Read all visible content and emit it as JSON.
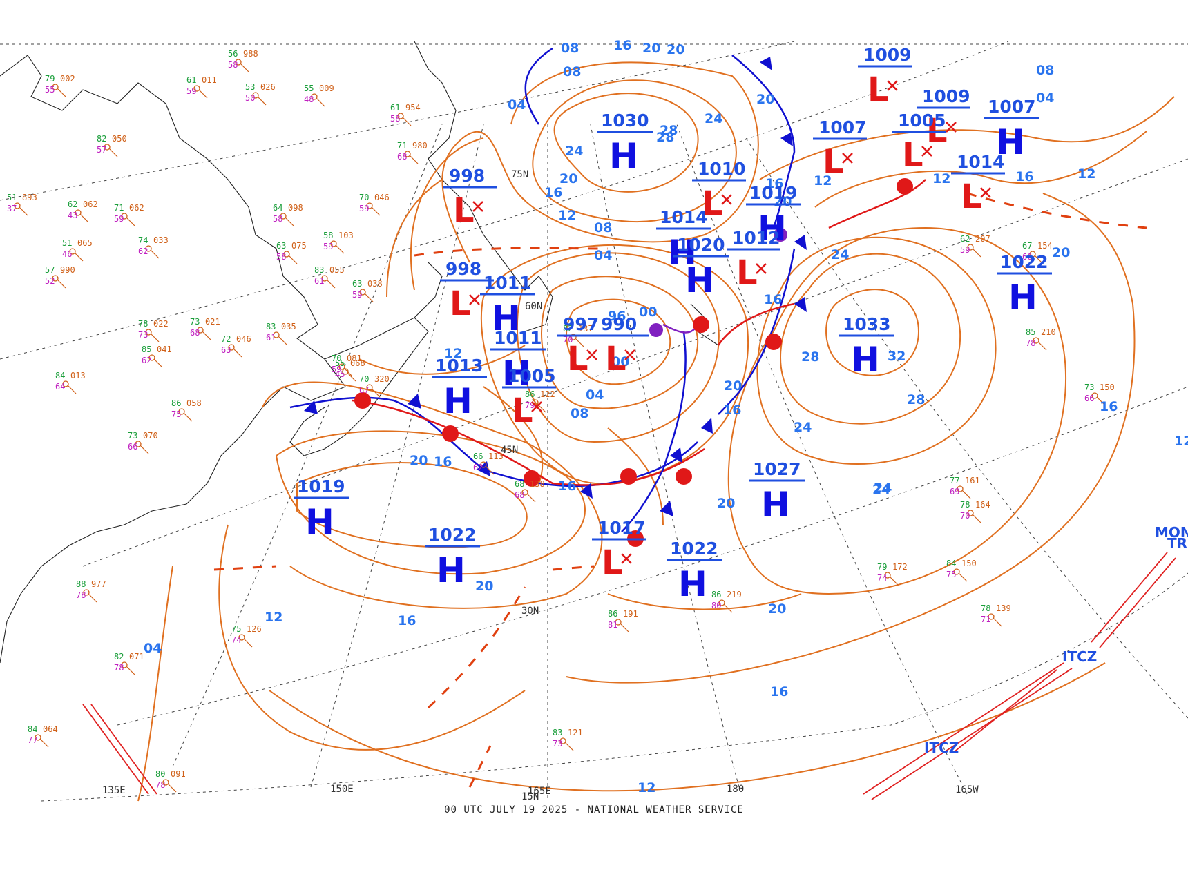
{
  "footer": "00 UTC JULY 19 2025 - NATIONAL WEATHER SERVICE",
  "colors": {
    "isobar": "#e07020",
    "isobar_label": "#2a74ee",
    "pressure_value": "#1f4fe0",
    "high": "#1010e0",
    "low": "#e01818",
    "cold_front": "#1010d0",
    "warm_front": "#e01818",
    "occluded_front": "#8020c0",
    "grid": "#444444",
    "coastline": "#222222"
  },
  "latitude_labels": [
    "75N",
    "60N",
    "45N",
    "30N",
    "15N"
  ],
  "longitude_labels": [
    "135E",
    "150E",
    "165E",
    "180",
    "165W"
  ],
  "highs": [
    {
      "label": "H",
      "pressure": "1030"
    },
    {
      "label": "H",
      "pressure": "1014"
    },
    {
      "label": "H",
      "pressure": "1011"
    },
    {
      "label": "H",
      "pressure": "1019"
    },
    {
      "label": "H",
      "pressure": "1020"
    },
    {
      "label": "H",
      "pressure": "1011"
    },
    {
      "label": "H",
      "pressure": "1013"
    },
    {
      "label": "H",
      "pressure": "1033"
    },
    {
      "label": "H",
      "pressure": "1022"
    },
    {
      "label": "H",
      "pressure": "1027"
    },
    {
      "label": "H",
      "pressure": "1019"
    },
    {
      "label": "H",
      "pressure": "1022"
    },
    {
      "label": "H",
      "pressure": "1022"
    },
    {
      "label": "H",
      "pressure": "1007"
    }
  ],
  "lows": [
    {
      "label": "L",
      "pressure": "998"
    },
    {
      "label": "L",
      "pressure": "998"
    },
    {
      "label": "L",
      "pressure": "1010"
    },
    {
      "label": "L",
      "pressure": "1012"
    },
    {
      "label": "L",
      "pressure": "997"
    },
    {
      "label": "L",
      "pressure": "990"
    },
    {
      "label": "L",
      "pressure": "1005"
    },
    {
      "label": "L",
      "pressure": "1017"
    },
    {
      "label": "L",
      "pressure": "1009"
    },
    {
      "label": "L",
      "pressure": "1005"
    },
    {
      "label": "L",
      "pressure": "1007"
    },
    {
      "label": "L",
      "pressure": "1009"
    },
    {
      "label": "L",
      "pressure": "1014"
    }
  ],
  "isobar_labels": [
    "08",
    "16",
    "20",
    "20",
    "24",
    "28",
    "20",
    "16",
    "12",
    "04",
    "08",
    "24",
    "28",
    "20",
    "12",
    "16",
    "20",
    "24",
    "28",
    "32",
    "28",
    "24",
    "20",
    "16",
    "12",
    "20",
    "16",
    "20",
    "16",
    "12",
    "04",
    "12",
    "16",
    "20",
    "24",
    "20",
    "16",
    "08",
    "04",
    "00",
    "96",
    "00",
    "04",
    "08",
    "12",
    "16",
    "20",
    "24",
    "16",
    "12",
    "16",
    "12",
    "08",
    "04"
  ],
  "map_text": [
    "ITCZ",
    "ITCZ",
    "MONS",
    "TR"
  ],
  "station_plots": [
    {
      "t": "79",
      "p": "002",
      "d": "55"
    },
    {
      "t": "56",
      "p": "988",
      "d": "58"
    },
    {
      "t": "61",
      "p": "011",
      "d": "59"
    },
    {
      "t": "55",
      "p": "009",
      "d": "48"
    },
    {
      "t": "53",
      "p": "026",
      "d": "50"
    },
    {
      "t": "61",
      "p": "954",
      "d": "58"
    },
    {
      "t": "71",
      "p": "980",
      "d": "68"
    },
    {
      "t": "82",
      "p": "050",
      "d": "57"
    },
    {
      "t": "51",
      "p": "893",
      "d": "37"
    },
    {
      "t": "62",
      "p": "062",
      "d": "43"
    },
    {
      "t": "71",
      "p": "062",
      "d": "59"
    },
    {
      "t": "70",
      "p": "046",
      "d": "59"
    },
    {
      "t": "51",
      "p": "065",
      "d": "46"
    },
    {
      "t": "74",
      "p": "033",
      "d": "62"
    },
    {
      "t": "64",
      "p": "098",
      "d": "58"
    },
    {
      "t": "58",
      "p": "103",
      "d": "59"
    },
    {
      "t": "63",
      "p": "075",
      "d": "58"
    },
    {
      "t": "57",
      "p": "990",
      "d": "52"
    },
    {
      "t": "63",
      "p": "038",
      "d": "59"
    },
    {
      "t": "83",
      "p": "055",
      "d": "61"
    },
    {
      "t": "83",
      "p": "035",
      "d": "61"
    },
    {
      "t": "78",
      "p": "022",
      "d": "73"
    },
    {
      "t": "73",
      "p": "021",
      "d": "68"
    },
    {
      "t": "72",
      "p": "046",
      "d": "63"
    },
    {
      "t": "85",
      "p": "041",
      "d": "62"
    },
    {
      "t": "70",
      "p": "081",
      "d": "59"
    },
    {
      "t": "84",
      "p": "013",
      "d": "64"
    },
    {
      "t": "86",
      "p": "058",
      "d": "75"
    },
    {
      "t": "88",
      "p": "977",
      "d": "78"
    },
    {
      "t": "73",
      "p": "070",
      "d": "66"
    },
    {
      "t": "70",
      "p": "320",
      "d": "67"
    },
    {
      "t": "78",
      "p": "164",
      "d": "70"
    },
    {
      "t": "79",
      "p": "172",
      "d": "74"
    },
    {
      "t": "77",
      "p": "161",
      "d": "69"
    },
    {
      "t": "86",
      "p": "219",
      "d": "80"
    },
    {
      "t": "84",
      "p": "064",
      "d": "77"
    },
    {
      "t": "80",
      "p": "091",
      "d": "78"
    },
    {
      "t": "83",
      "p": "121",
      "d": "73"
    },
    {
      "t": "86",
      "p": "191",
      "d": "81"
    },
    {
      "t": "82",
      "p": "071",
      "d": "78"
    },
    {
      "t": "75",
      "p": "126",
      "d": "74"
    },
    {
      "t": "67",
      "p": "154",
      "d": "60"
    },
    {
      "t": "62",
      "p": "207",
      "d": "59"
    },
    {
      "t": "85",
      "p": "210",
      "d": "78"
    },
    {
      "t": "73",
      "p": "150",
      "d": "66"
    },
    {
      "t": "78",
      "p": "139",
      "d": "71"
    },
    {
      "t": "84",
      "p": "150",
      "d": "75"
    },
    {
      "t": "66",
      "p": "113",
      "d": "62"
    },
    {
      "t": "68",
      "p": "138",
      "d": "68"
    },
    {
      "t": "55",
      "p": "068",
      "d": "45"
    },
    {
      "t": "86",
      "p": "122",
      "d": "79"
    },
    {
      "t": "82",
      "p": "137",
      "d": "70"
    }
  ]
}
